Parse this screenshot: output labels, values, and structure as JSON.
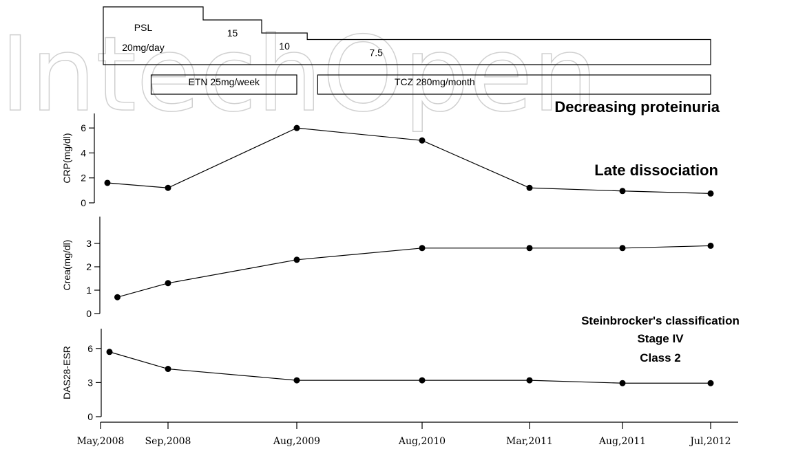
{
  "chart_data": {
    "type": "line",
    "watermark": "IntechOpen",
    "x_dates": [
      "2008-05",
      "2008-09",
      "2009-08",
      "2010-08",
      "2011-03",
      "2011-08",
      "2012-07"
    ],
    "x_tick_labels": [
      "May,2008",
      "Sep,2008",
      "Aug,2009",
      "Aug,2010",
      "Mar,2011",
      "Aug,2011",
      "Jul,2012"
    ],
    "treatment": {
      "psl": {
        "name": "PSL",
        "steps": [
          {
            "start": "2008-05",
            "end": "2008-12",
            "label": "20mg/day",
            "dose": 20
          },
          {
            "start": "2008-12",
            "end": "2009-05",
            "label": "15",
            "dose": 15
          },
          {
            "start": "2009-05",
            "end": "2009-09",
            "label": "10",
            "dose": 10
          },
          {
            "start": "2009-09",
            "end": "2012-07",
            "label": "7.5",
            "dose": 7.5
          }
        ]
      },
      "biologics": [
        {
          "label": "ETN 25mg/week",
          "start": "2008-08",
          "end": "2009-08"
        },
        {
          "label": "TCZ 280mg/month",
          "start": "2009-10",
          "end": "2012-07"
        }
      ],
      "note": "Decreasing proteinuria"
    },
    "panels": [
      {
        "ylabel": "CRP(mg/dl)",
        "ylim": [
          0,
          7
        ],
        "yticks": [
          0,
          2,
          4,
          6
        ],
        "annotation": [
          "Late dissociation"
        ],
        "points": [
          {
            "x": "2008-05",
            "y": 1.6
          },
          {
            "x": "2008-09",
            "y": 1.2
          },
          {
            "x": "2009-08",
            "y": 6.0
          },
          {
            "x": "2010-08",
            "y": 5.0
          },
          {
            "x": "2011-03",
            "y": 1.2
          },
          {
            "x": "2011-08",
            "y": 0.95
          },
          {
            "x": "2012-07",
            "y": 0.75
          }
        ]
      },
      {
        "ylabel": "Crea(mg/dl)",
        "ylim": [
          0,
          4
        ],
        "yticks": [
          0,
          1,
          2,
          3
        ],
        "annotation": [],
        "points": [
          {
            "x": "2008-06",
            "y": 0.7
          },
          {
            "x": "2008-09",
            "y": 1.3
          },
          {
            "x": "2009-08",
            "y": 2.3
          },
          {
            "x": "2010-08",
            "y": 2.8
          },
          {
            "x": "2011-03",
            "y": 2.8
          },
          {
            "x": "2011-08",
            "y": 2.8
          },
          {
            "x": "2012-07",
            "y": 2.9
          }
        ]
      },
      {
        "ylabel": "DAS28-ESR",
        "ylim": [
          0,
          7.5
        ],
        "yticks": [
          0,
          3,
          6
        ],
        "annotation": [
          "Steinbrocker's classification",
          "Stage IV",
          "Class 2"
        ],
        "points": [
          {
            "x": "2008-05",
            "y": 5.7
          },
          {
            "x": "2008-09",
            "y": 4.2
          },
          {
            "x": "2009-08",
            "y": 3.2
          },
          {
            "x": "2010-08",
            "y": 3.2
          },
          {
            "x": "2011-03",
            "y": 3.2
          },
          {
            "x": "2011-08",
            "y": 2.95
          },
          {
            "x": "2012-07",
            "y": 2.95
          }
        ]
      }
    ]
  }
}
